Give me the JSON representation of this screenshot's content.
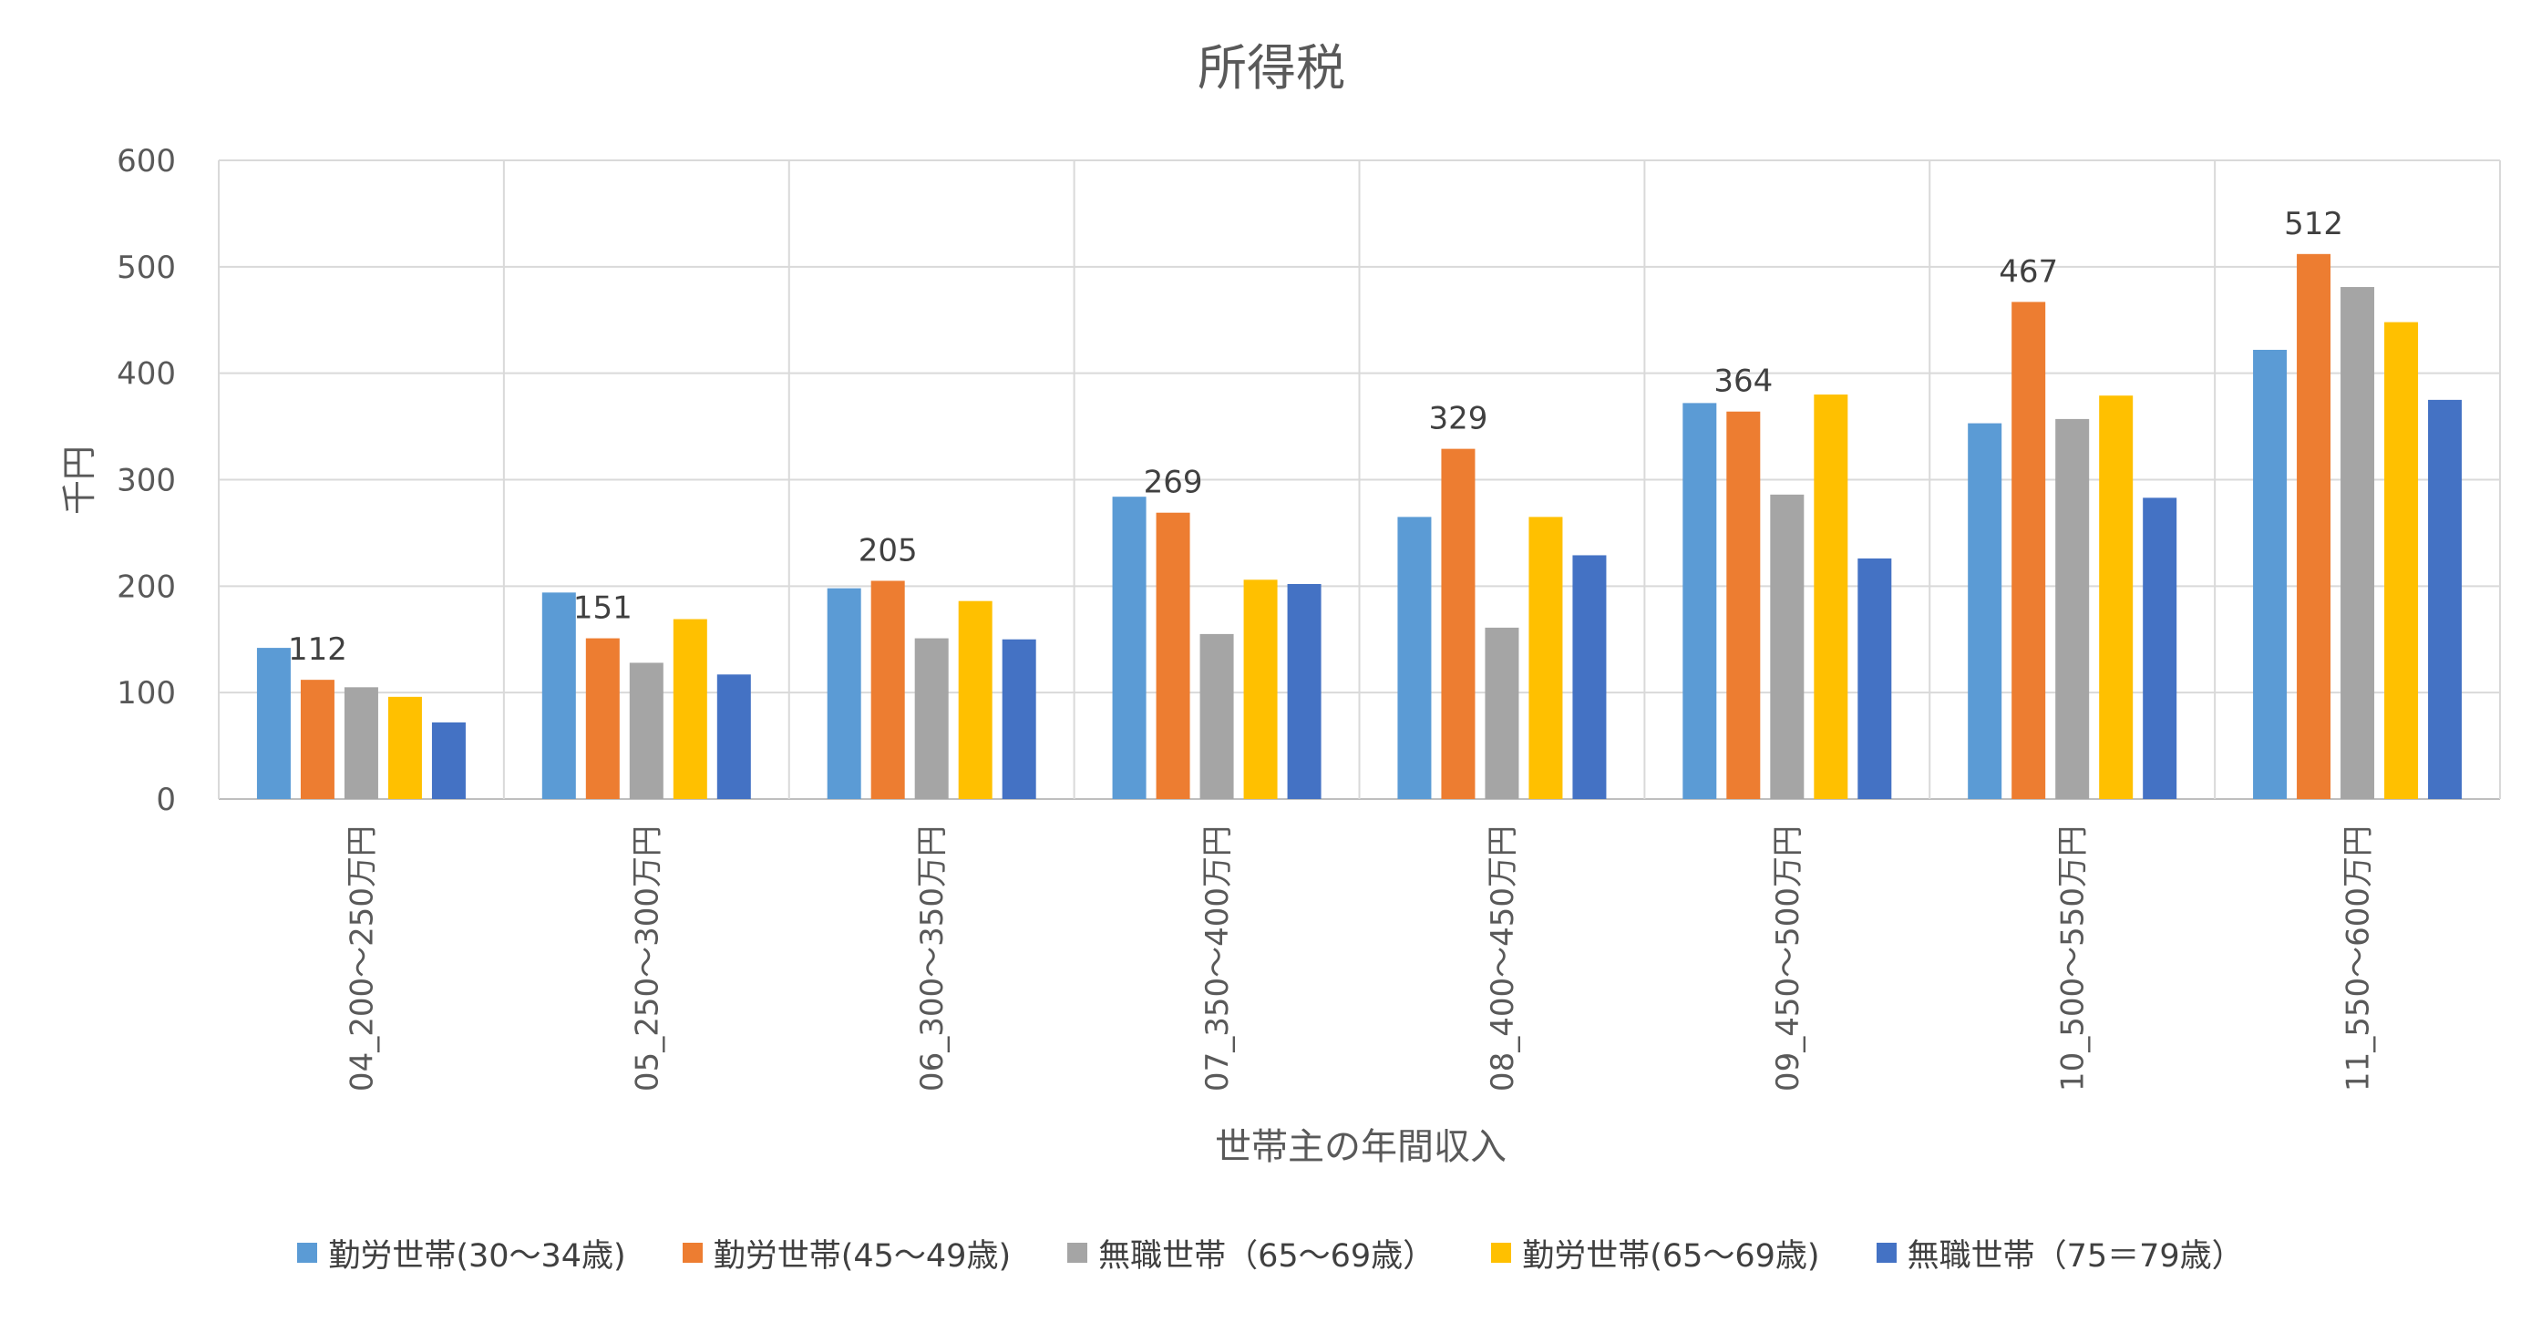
{
  "chart_data": {
    "type": "bar",
    "title": "所得税",
    "xlabel": "世帯主の年間収入",
    "ylabel": "千円",
    "ylim": [
      0,
      600
    ],
    "yticks": [
      "0",
      "100",
      "200",
      "300",
      "400",
      "500",
      "600"
    ],
    "grid": true,
    "legend_position": "bottom",
    "categories": [
      "04_200～250万円",
      "05_250～300万円",
      "06_300～350万円",
      "07_350～400万円",
      "08_400～450万円",
      "09_450～500万円",
      "10_500～550万円",
      "11_550～600万円"
    ],
    "series": [
      {
        "name": "勤労世帯(30～34歳)",
        "color": "#5b9bd5",
        "values": [
          142,
          194,
          198,
          284,
          265,
          372,
          353,
          422
        ]
      },
      {
        "name": "勤労世帯(45～49歳)",
        "color": "#ed7d31",
        "values": [
          112,
          151,
          205,
          269,
          329,
          364,
          467,
          512
        ]
      },
      {
        "name": "無職世帯（65～69歳）",
        "color": "#a5a5a5",
        "values": [
          105,
          128,
          151,
          155,
          161,
          286,
          357,
          481
        ]
      },
      {
        "name": "勤労世帯(65～69歳)",
        "color": "#ffc000",
        "values": [
          96,
          169,
          186,
          206,
          265,
          380,
          379,
          448
        ]
      },
      {
        "name": "無職世帯（75＝79歳）",
        "color": "#4472c4",
        "values": [
          72,
          117,
          150,
          202,
          229,
          226,
          283,
          375
        ]
      }
    ],
    "data_labels": {
      "series_index": 1,
      "values": [
        "112",
        "151",
        "205",
        "269",
        "329",
        "364",
        "467",
        "512"
      ]
    }
  }
}
